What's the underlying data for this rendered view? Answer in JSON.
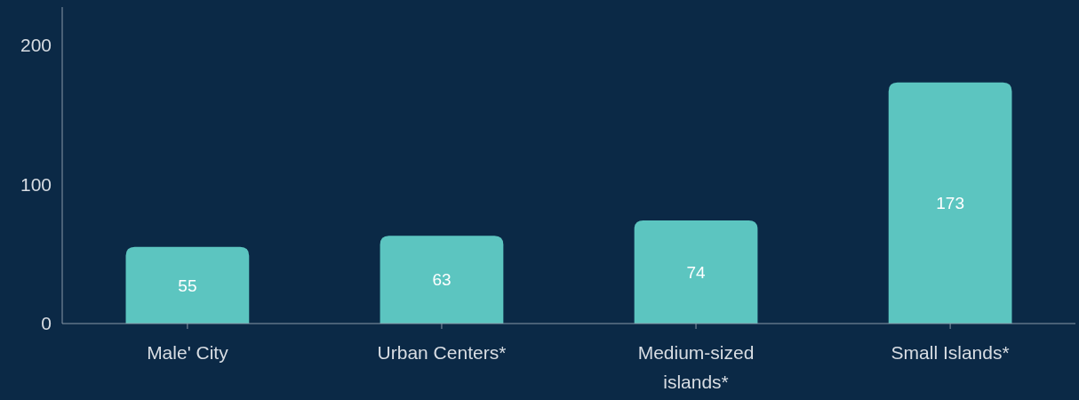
{
  "chart_data": {
    "type": "bar",
    "categories": [
      "Male' City",
      "Urban Centers*",
      "Medium-sized islands*",
      "Small Islands*"
    ],
    "values": [
      55,
      63,
      74,
      173
    ],
    "color": "#5cc5c0",
    "ylim": [
      0,
      227
    ],
    "yticks": [
      0,
      100,
      200
    ],
    "data_labels": true,
    "grid": false
  }
}
